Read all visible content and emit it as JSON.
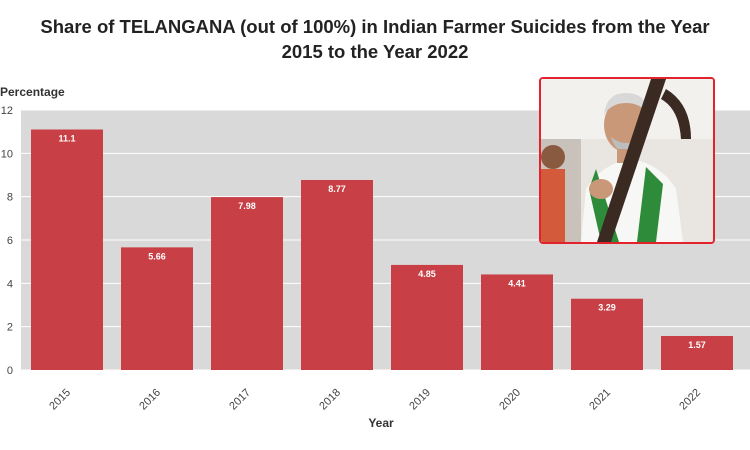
{
  "chart_data": {
    "type": "bar",
    "title": [
      "Share of TELANGANA (out of 100%) in Indian Farmer Suicides from the Year",
      "2015 to the Year 2022"
    ],
    "xlabel": "Year",
    "ylabel": "Percentage",
    "categories": [
      "2015",
      "2016",
      "2017",
      "2018",
      "2019",
      "2020",
      "2021",
      "2022"
    ],
    "values": [
      11.1,
      5.66,
      7.98,
      8.77,
      4.85,
      4.41,
      3.29,
      1.57
    ],
    "value_labels": [
      "11.1",
      "5.66",
      "7.98",
      "8.77",
      "4.85",
      "4.41",
      "3.29",
      "1.57"
    ],
    "yticks": [
      "0",
      "2",
      "4",
      "6",
      "8",
      "10",
      "12"
    ],
    "ylim": [
      0,
      12
    ],
    "grid": true,
    "bar_color": "#c84045",
    "plot_background": "#d9d9d9"
  },
  "photo": {
    "description_icon": "portrait-photo",
    "border_color": "#e3232b"
  }
}
